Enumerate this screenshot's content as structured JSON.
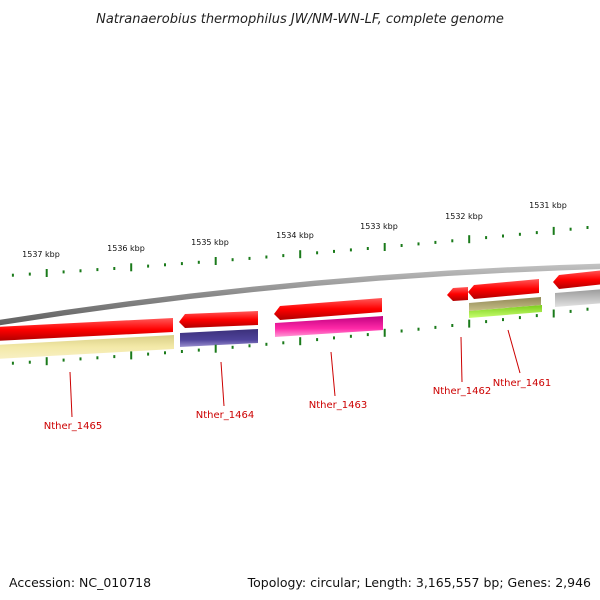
{
  "title": "Natranaerobius thermophilus JW/NM-WN-LF, complete genome",
  "footer": {
    "accession": "Accession: NC_010718",
    "summary": "Topology: circular; Length: 3,165,557 bp; Genes: 2,946"
  },
  "ruler_labels": [
    "1537 kbp",
    "1536 kbp",
    "1535 kbp",
    "1534 kbp",
    "1533 kbp",
    "1532 kbp",
    "1531 kbp"
  ],
  "gene_labels": [
    "Nther_1465",
    "Nther_1464",
    "Nther_1463",
    "Nther_1462",
    "Nther_1461"
  ],
  "colors": {
    "backbone": "#888888",
    "cds": "#ff0000",
    "ruler_tick": "#1a7a1a",
    "label": "#cc0000",
    "feature_yellow": "#f2e6a0",
    "feature_navy": "#4a3d8f",
    "feature_magenta": "#e0189a",
    "feature_olive": "#b2a86a",
    "feature_lime": "#a6ff33",
    "feature_grey": "#c8c8c8"
  }
}
